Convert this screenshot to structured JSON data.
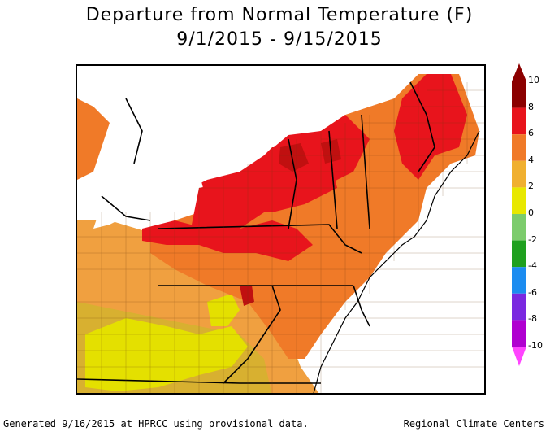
{
  "title": "Departure from Normal Temperature (F)",
  "subtitle": "9/1/2015 - 9/15/2015",
  "legend": {
    "ticks": [
      "10",
      "8",
      "6",
      "4",
      "2",
      "0",
      "-2",
      "-4",
      "-6",
      "-8",
      "-10"
    ],
    "colors": [
      "#8b0000",
      "#e8141c",
      "#f07a28",
      "#f0b030",
      "#e8e800",
      "#7ccc6c",
      "#1fa01f",
      "#1c8cf0",
      "#7a28e0",
      "#b000d0",
      "#ff44ff"
    ]
  },
  "footer": {
    "left": "Generated 9/16/2015 at HPRCC using provisional data.",
    "right": "Regional Climate Centers"
  }
}
